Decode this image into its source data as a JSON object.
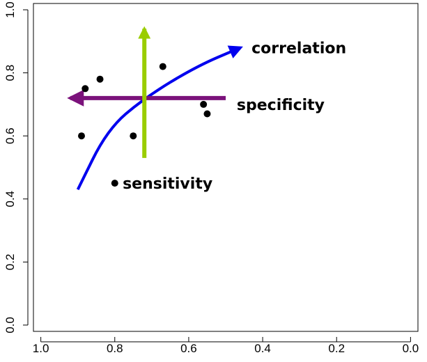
{
  "chart_data": {
    "type": "scatter",
    "title": "",
    "xlabel": "",
    "ylabel": "",
    "xlim": [
      1.02,
      -0.02
    ],
    "ylim": [
      -0.02,
      1.02
    ],
    "x_ticks": [
      1.0,
      0.8,
      0.6,
      0.4,
      0.2,
      0.0
    ],
    "x_tick_labels": [
      "1.0",
      "0.8",
      "0.6",
      "0.4",
      "0.2",
      "0.0"
    ],
    "y_ticks": [
      0.0,
      0.2,
      0.4,
      0.6,
      0.8,
      1.0
    ],
    "y_tick_labels": [
      "0.0",
      "0.2",
      "0.4",
      "0.6",
      "0.8",
      "1.0"
    ],
    "grid": false,
    "points": [
      {
        "x": 0.89,
        "y": 0.6
      },
      {
        "x": 0.88,
        "y": 0.75
      },
      {
        "x": 0.84,
        "y": 0.78
      },
      {
        "x": 0.75,
        "y": 0.6
      },
      {
        "x": 0.67,
        "y": 0.82
      },
      {
        "x": 0.56,
        "y": 0.7
      },
      {
        "x": 0.55,
        "y": 0.67
      },
      {
        "x": 0.8,
        "y": 0.45
      }
    ],
    "arrows": [
      {
        "label": "correlation",
        "color": "#0000ee",
        "curve": [
          [
            0.9,
            0.43
          ],
          [
            0.82,
            0.62
          ],
          [
            0.72,
            0.72
          ],
          [
            0.58,
            0.82
          ],
          [
            0.46,
            0.88
          ]
        ],
        "label_anchor": [
          0.43,
          0.88
        ]
      },
      {
        "label": "specificity",
        "color": "#7b127b",
        "from": [
          0.5,
          0.72
        ],
        "to": [
          0.92,
          0.72
        ],
        "label_anchor": [
          0.47,
          0.7
        ]
      },
      {
        "label": "",
        "color": "#9acd00",
        "from": [
          0.72,
          0.53
        ],
        "to": [
          0.72,
          0.94
        ]
      }
    ],
    "annotations": [
      {
        "text": "sensitivity",
        "anchor": [
          0.79,
          0.45
        ]
      }
    ]
  }
}
